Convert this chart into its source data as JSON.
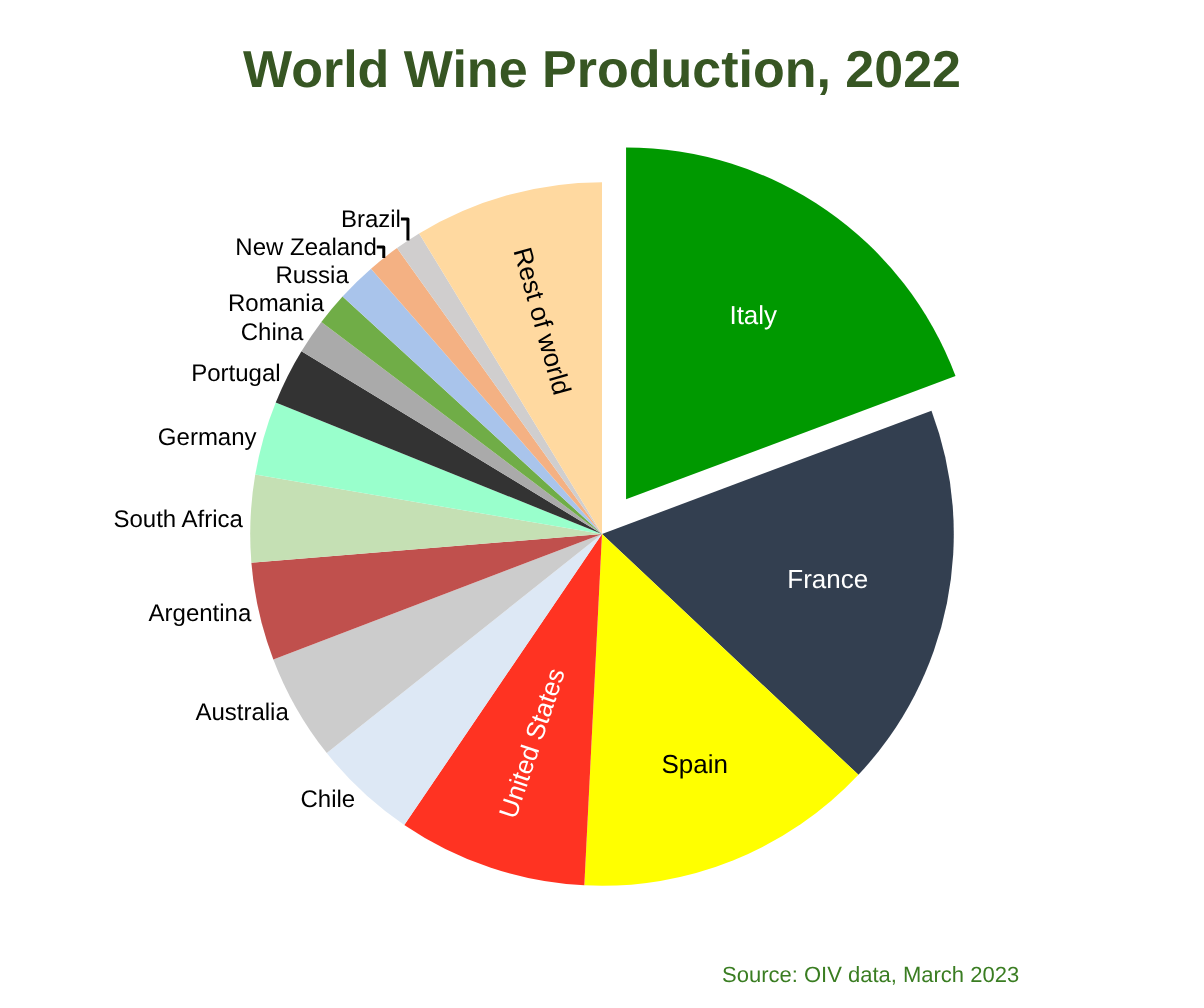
{
  "chart_data": {
    "type": "pie",
    "title": "World Wine Production, 2022",
    "categories": [
      "Italy",
      "France",
      "Spain",
      "United States",
      "Chile",
      "Australia",
      "Argentina",
      "South Africa",
      "Germany",
      "Portugal",
      "China",
      "Romania",
      "Russia",
      "New Zealand",
      "Brazil",
      "Rest of world"
    ],
    "values": [
      19.3,
      17.7,
      13.8,
      8.7,
      4.8,
      4.9,
      4.5,
      4.0,
      3.4,
      2.6,
      1.6,
      1.5,
      1.8,
      1.5,
      1.2,
      8.7
    ],
    "colors": [
      "#009900",
      "#333f50",
      "#ffff00",
      "#ff3322",
      "#dde8f5",
      "#cccccc",
      "#c0504d",
      "#c5e0b4",
      "#99ffcc",
      "#333333",
      "#aaaaaa",
      "#70ad47",
      "#a9c4eb",
      "#f4b183",
      "#d0cece",
      "#ffd9a0"
    ],
    "annotations": [
      "Source: OIV data, March 2023"
    ],
    "legend": false
  }
}
